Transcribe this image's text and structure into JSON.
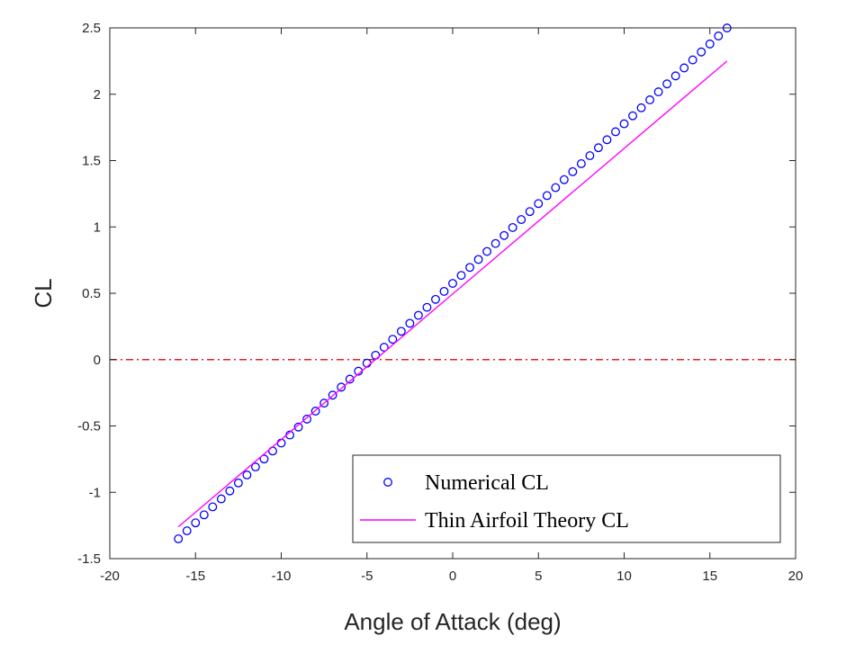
{
  "chart_data": {
    "type": "scatter",
    "title": "",
    "xlabel": "Angle of Attack (deg)",
    "ylabel": "CL",
    "xlim": [
      -20,
      20
    ],
    "ylim": [
      -1.5,
      2.5
    ],
    "xticks": [
      "-20",
      "-15",
      "-10",
      "-5",
      "0",
      "5",
      "10",
      "15",
      "20"
    ],
    "yticks": [
      "-1.5",
      "-1",
      "-0.5",
      "0",
      "0.5",
      "1",
      "1.5",
      "2",
      "2.5"
    ],
    "grid": false,
    "legend_position": "bottom-right",
    "series": [
      {
        "name": "Numerical CL",
        "style": "circle-markers",
        "color": "#0000ff",
        "x_start": -16,
        "x_end": 16,
        "x_step": 0.5,
        "slope": 0.1203,
        "intercept": 0.5743
      },
      {
        "name": "Thin Airfoil Theory CL",
        "style": "line",
        "color": "#ff00ff",
        "x": [
          -16,
          16
        ],
        "y": [
          -1.26,
          2.25
        ]
      }
    ],
    "reference_lines": [
      {
        "orientation": "horizontal",
        "y": 0,
        "style": "dash-dot",
        "color": "#e02020"
      }
    ],
    "legend": {
      "entries": [
        "Numerical CL",
        "Thin Airfoil Theory CL"
      ]
    }
  }
}
